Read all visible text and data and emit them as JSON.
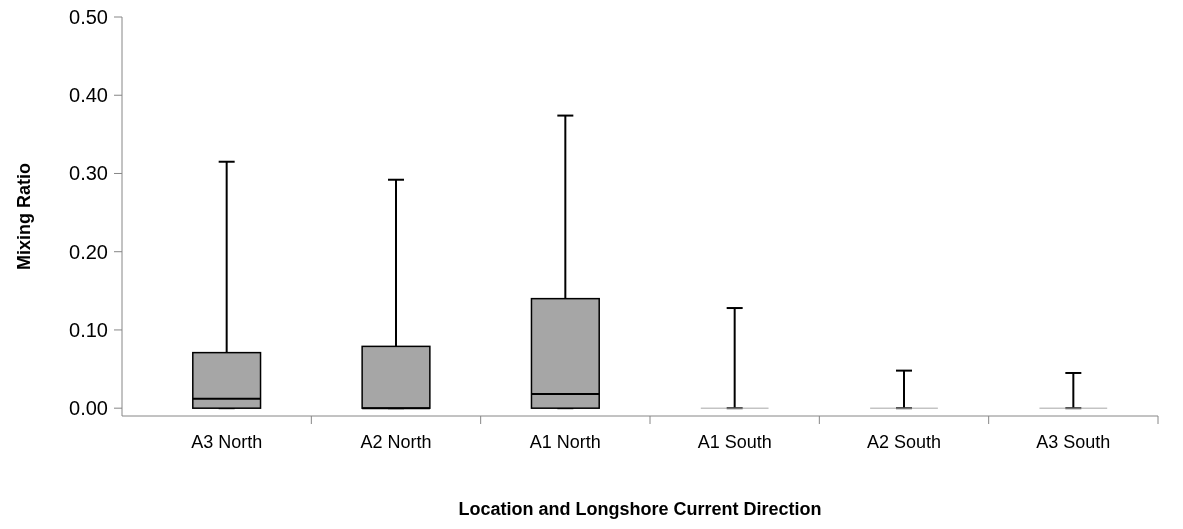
{
  "chart_data": {
    "type": "box",
    "xlabel": "Location and Longshore Current Direction",
    "ylabel": "Mixing Ratio",
    "categories": [
      "A3 North",
      "A2 North",
      "A1 North",
      "A1 South",
      "A2 South",
      "A3 South"
    ],
    "boxes": [
      {
        "low": 0,
        "q1": 0,
        "median": 0.012,
        "q3": 0.071,
        "high": 0.315
      },
      {
        "low": 0,
        "q1": 0,
        "median": 0,
        "q3": 0.079,
        "high": 0.292
      },
      {
        "low": 0,
        "q1": 0,
        "median": 0.018,
        "q3": 0.14,
        "high": 0.374
      },
      {
        "low": 0,
        "q1": 0,
        "median": 0,
        "q3": 0,
        "high": 0.128
      },
      {
        "low": 0,
        "q1": 0,
        "median": 0,
        "q3": 0,
        "high": 0.048
      },
      {
        "low": 0,
        "q1": 0,
        "median": 0,
        "q3": 0,
        "high": 0.045
      }
    ],
    "color": "#a6a6a6",
    "ylim": [
      -0.01,
      0.5
    ],
    "yticks": [
      {
        "value": 0,
        "label": "0.00"
      },
      {
        "value": 0.1,
        "label": "0.10"
      },
      {
        "value": 0.2,
        "label": "0.20"
      },
      {
        "value": 0.3,
        "label": "0.30"
      },
      {
        "value": 0.4,
        "label": "0.40"
      },
      {
        "value": 0.5,
        "label": "0.50"
      }
    ],
    "grid": false
  }
}
